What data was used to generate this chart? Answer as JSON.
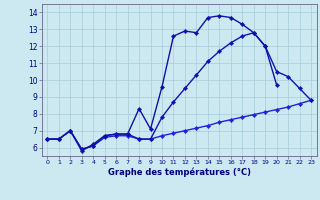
{
  "line1": {
    "x": [
      0,
      1,
      2,
      3,
      4,
      5,
      6,
      7,
      8,
      9,
      10,
      11,
      12,
      13,
      14,
      15,
      16,
      17,
      18,
      19,
      20
    ],
    "y": [
      6.5,
      6.5,
      7.0,
      5.8,
      6.2,
      6.7,
      6.8,
      6.8,
      8.3,
      7.1,
      9.6,
      12.6,
      12.9,
      12.8,
      13.7,
      13.8,
      13.7,
      13.3,
      12.8,
      12.0,
      9.7
    ],
    "color": "#1111aa",
    "linewidth": 1.0,
    "marker": "D",
    "markersize": 2.2
  },
  "line2": {
    "x": [
      0,
      1,
      2,
      3,
      4,
      5,
      6,
      7,
      8,
      9,
      10,
      11,
      12,
      13,
      14,
      15,
      16,
      17,
      18,
      19,
      20,
      21,
      22,
      23
    ],
    "y": [
      6.5,
      6.5,
      7.0,
      5.9,
      6.1,
      6.7,
      6.8,
      6.8,
      6.5,
      6.5,
      7.8,
      8.7,
      9.5,
      10.3,
      11.1,
      11.7,
      12.2,
      12.6,
      12.8,
      12.0,
      10.5,
      10.2,
      9.5,
      8.8
    ],
    "color": "#1111bb",
    "linewidth": 1.0,
    "marker": "D",
    "markersize": 2.2
  },
  "line3": {
    "x": [
      0,
      1,
      2,
      3,
      4,
      5,
      6,
      7,
      8,
      9,
      10,
      11,
      12,
      13,
      14,
      15,
      16,
      17,
      18,
      19,
      20,
      21,
      22,
      23
    ],
    "y": [
      6.5,
      6.5,
      7.0,
      5.9,
      6.1,
      6.6,
      6.7,
      6.7,
      6.5,
      6.5,
      6.7,
      6.85,
      7.0,
      7.15,
      7.3,
      7.5,
      7.65,
      7.8,
      7.95,
      8.1,
      8.25,
      8.4,
      8.6,
      8.8
    ],
    "color": "#2222dd",
    "linewidth": 1.0,
    "marker": "D",
    "markersize": 2.2
  },
  "xlim": [
    -0.5,
    23.5
  ],
  "ylim": [
    5.5,
    14.5
  ],
  "yticks": [
    6,
    7,
    8,
    9,
    10,
    11,
    12,
    13,
    14
  ],
  "xticks": [
    0,
    1,
    2,
    3,
    4,
    5,
    6,
    7,
    8,
    9,
    10,
    11,
    12,
    13,
    14,
    15,
    16,
    17,
    18,
    19,
    20,
    21,
    22,
    23
  ],
  "xlabel": "Graphe des températures (°C)",
  "bg_color": "#cce8f0",
  "grid_color": "#a8ccd8",
  "text_color": "#000080",
  "tick_color": "#000080",
  "spine_color": "#666688"
}
